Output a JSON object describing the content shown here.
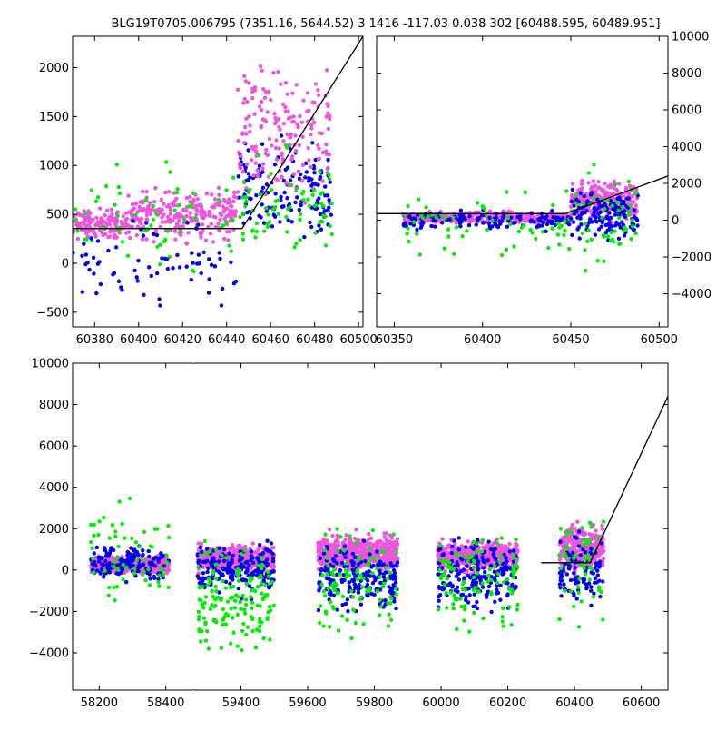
{
  "title": "BLG19T0705.006795 (7351.16, 5644.52)    3 1416 -117.03 0.038 302 [60488.595, 60489.951]",
  "colors": {
    "series_a": "#0000ee",
    "series_b": "#00ee00",
    "series_c": "#ee55dd",
    "model": "#000000"
  },
  "chart_data": [
    {
      "type": "scatter",
      "panel": "top-left zoom",
      "xlim": [
        60370,
        60502
      ],
      "ylim": [
        -650,
        2320
      ],
      "xticks": [
        60380,
        60400,
        60420,
        60440,
        60460,
        60480,
        60500
      ],
      "yticks": [
        -500,
        0,
        500,
        1000,
        1500,
        2000
      ],
      "y_axis_side": "left",
      "clusters": [
        {
          "x": [
            60370,
            60395
          ],
          "y": [
            200,
            600
          ],
          "n": 150,
          "series": "series_c"
        },
        {
          "x": [
            60395,
            60445
          ],
          "y": [
            150,
            850
          ],
          "n": 260,
          "series": "series_c"
        },
        {
          "x": [
            60370,
            60445
          ],
          "y": [
            -300,
            1200
          ],
          "n": 60,
          "series": "series_b"
        },
        {
          "x": [
            60370,
            60445
          ],
          "y": [
            -600,
            600
          ],
          "n": 70,
          "series": "series_a"
        },
        {
          "x": [
            60445,
            60488
          ],
          "y": [
            0,
            1400
          ],
          "n": 140,
          "series": "series_a"
        },
        {
          "x": [
            60445,
            60488
          ],
          "y": [
            300,
            2300
          ],
          "n": 180,
          "series": "series_c"
        },
        {
          "x": [
            60445,
            60488
          ],
          "y": [
            -200,
            1300
          ],
          "n": 70,
          "series": "series_b"
        }
      ],
      "model_line": {
        "x": [
          60370,
          60447,
          60502
        ],
        "y": [
          355,
          355,
          2320
        ],
        "series": "model"
      }
    },
    {
      "type": "scatter",
      "panel": "top-right zoom",
      "xlim": [
        60340,
        60505
      ],
      "ylim": [
        -5800,
        10000
      ],
      "xticks": [
        60350,
        60400,
        60450,
        60500
      ],
      "yticks": [
        -4000,
        -2000,
        0,
        2000,
        4000,
        6000,
        8000,
        10000
      ],
      "y_axis_side": "right",
      "clusters": [
        {
          "x": [
            60355,
            60450
          ],
          "y": [
            -300,
            600
          ],
          "n": 380,
          "series": "series_c"
        },
        {
          "x": [
            60355,
            60450
          ],
          "y": [
            -700,
            700
          ],
          "n": 140,
          "series": "series_a"
        },
        {
          "x": [
            60355,
            60450
          ],
          "y": [
            -2500,
            2000
          ],
          "n": 60,
          "series": "series_b"
        },
        {
          "x": [
            60450,
            60488
          ],
          "y": [
            -300,
            2500
          ],
          "n": 260,
          "series": "series_c"
        },
        {
          "x": [
            60450,
            60488
          ],
          "y": [
            -1500,
            2000
          ],
          "n": 140,
          "series": "series_a"
        },
        {
          "x": [
            60450,
            60488
          ],
          "y": [
            -3500,
            3500
          ],
          "n": 50,
          "series": "series_b"
        }
      ],
      "model_line": {
        "x": [
          60340,
          60447,
          60505
        ],
        "y": [
          355,
          355,
          2400
        ],
        "series": "model"
      }
    },
    {
      "type": "scatter",
      "panel": "bottom full light curve",
      "segments": [
        {
          "xlim": [
            58120,
            58480
          ],
          "xticks": [
            58200,
            58400
          ]
        },
        {
          "xlim": [
            59260,
            60680
          ],
          "xticks": [
            59400,
            59600,
            59800,
            60000,
            60200,
            60400,
            60600
          ]
        }
      ],
      "ylim": [
        -5800,
        10000
      ],
      "yticks": [
        -4000,
        -2000,
        0,
        2000,
        4000,
        6000,
        8000,
        10000
      ],
      "y_axis_side": "left",
      "clusters": [
        {
          "x": [
            58175,
            58410
          ],
          "y": [
            -300,
            800
          ],
          "n": 450,
          "series": "series_c"
        },
        {
          "x": [
            58175,
            58410
          ],
          "y": [
            -800,
            1500
          ],
          "n": 150,
          "series": "series_a"
        },
        {
          "x": [
            58175,
            58410
          ],
          "y": [
            -3000,
            4000
          ],
          "n": 60,
          "series": "series_b"
        },
        {
          "x": [
            59270,
            59500
          ],
          "y": [
            -300,
            1400
          ],
          "n": 500,
          "series": "series_c"
        },
        {
          "x": [
            59270,
            59500
          ],
          "y": [
            -1500,
            1600
          ],
          "n": 200,
          "series": "series_a"
        },
        {
          "x": [
            59270,
            59500
          ],
          "y": [
            -5000,
            2000
          ],
          "n": 150,
          "series": "series_b"
        },
        {
          "x": [
            59630,
            59870
          ],
          "y": [
            -300,
            2000
          ],
          "n": 500,
          "series": "series_c"
        },
        {
          "x": [
            59630,
            59870
          ],
          "y": [
            -2500,
            1800
          ],
          "n": 200,
          "series": "series_a"
        },
        {
          "x": [
            59630,
            59870
          ],
          "y": [
            -4000,
            3000
          ],
          "n": 100,
          "series": "series_b"
        },
        {
          "x": [
            59990,
            60230
          ],
          "y": [
            -300,
            1600
          ],
          "n": 500,
          "series": "series_c"
        },
        {
          "x": [
            59990,
            60230
          ],
          "y": [
            -2500,
            2000
          ],
          "n": 200,
          "series": "series_a"
        },
        {
          "x": [
            59990,
            60230
          ],
          "y": [
            -4000,
            3000
          ],
          "n": 100,
          "series": "series_b"
        },
        {
          "x": [
            60355,
            60488
          ],
          "y": [
            -300,
            2500
          ],
          "n": 300,
          "series": "series_c"
        },
        {
          "x": [
            60355,
            60488
          ],
          "y": [
            -2500,
            2500
          ],
          "n": 100,
          "series": "series_a"
        },
        {
          "x": [
            60355,
            60488
          ],
          "y": [
            -4000,
            4500
          ],
          "n": 50,
          "series": "series_b"
        }
      ],
      "model_line": {
        "x": [
          60300,
          60447,
          60680
        ],
        "y": [
          355,
          355,
          8400
        ],
        "series": "model"
      }
    }
  ]
}
